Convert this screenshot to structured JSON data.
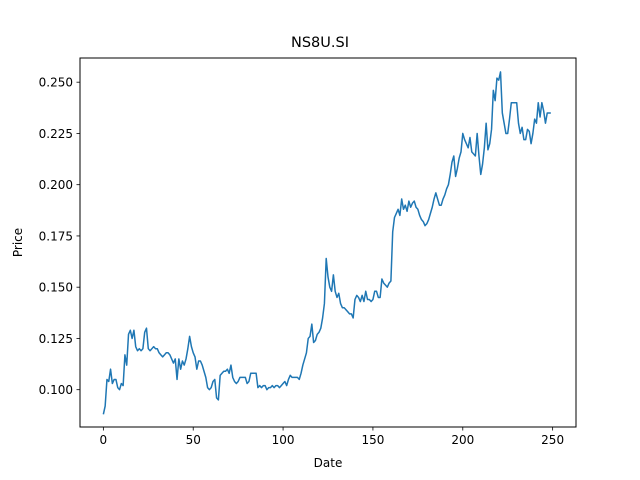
{
  "chart_data": {
    "type": "line",
    "title": "NS8U.SI",
    "xlabel": "Date",
    "ylabel": "Price",
    "xlim": [
      -13,
      263
    ],
    "ylim": [
      0.0818,
      0.2618
    ],
    "x_ticks": [
      0,
      50,
      100,
      150,
      200,
      250
    ],
    "y_ticks": [
      0.1,
      0.125,
      0.15,
      0.175,
      0.2,
      0.225,
      0.25
    ],
    "y_tick_labels": [
      "0.100",
      "0.125",
      "0.150",
      "0.175",
      "0.200",
      "0.225",
      "0.250"
    ],
    "grid": false,
    "line_color": "#1f77b4",
    "series": [
      {
        "values": [
          0.088,
          0.092,
          0.105,
          0.104,
          0.11,
          0.103,
          0.105,
          0.105,
          0.101,
          0.1,
          0.103,
          0.102,
          0.117,
          0.112,
          0.127,
          0.129,
          0.125,
          0.129,
          0.121,
          0.119,
          0.12,
          0.119,
          0.12,
          0.128,
          0.13,
          0.12,
          0.119,
          0.12,
          0.121,
          0.12,
          0.12,
          0.118,
          0.117,
          0.116,
          0.117,
          0.118,
          0.118,
          0.117,
          0.115,
          0.113,
          0.115,
          0.105,
          0.115,
          0.11,
          0.114,
          0.112,
          0.115,
          0.12,
          0.126,
          0.121,
          0.118,
          0.116,
          0.11,
          0.114,
          0.114,
          0.112,
          0.109,
          0.106,
          0.101,
          0.1,
          0.101,
          0.104,
          0.105,
          0.096,
          0.095,
          0.107,
          0.108,
          0.109,
          0.109,
          0.11,
          0.108,
          0.112,
          0.106,
          0.104,
          0.103,
          0.104,
          0.106,
          0.106,
          0.106,
          0.106,
          0.103,
          0.104,
          0.108,
          0.108,
          0.108,
          0.108,
          0.101,
          0.102,
          0.101,
          0.102,
          0.102,
          0.1,
          0.101,
          0.101,
          0.102,
          0.101,
          0.102,
          0.102,
          0.101,
          0.102,
          0.103,
          0.104,
          0.102,
          0.105,
          0.107,
          0.106,
          0.106,
          0.106,
          0.106,
          0.105,
          0.108,
          0.112,
          0.115,
          0.118,
          0.125,
          0.126,
          0.132,
          0.123,
          0.124,
          0.127,
          0.128,
          0.13,
          0.135,
          0.142,
          0.164,
          0.155,
          0.15,
          0.148,
          0.156,
          0.148,
          0.145,
          0.147,
          0.142,
          0.14,
          0.14,
          0.139,
          0.138,
          0.137,
          0.137,
          0.135,
          0.144,
          0.146,
          0.145,
          0.143,
          0.146,
          0.143,
          0.148,
          0.144,
          0.144,
          0.143,
          0.144,
          0.148,
          0.148,
          0.145,
          0.145,
          0.154,
          0.152,
          0.151,
          0.15,
          0.152,
          0.153,
          0.177,
          0.184,
          0.186,
          0.188,
          0.185,
          0.193,
          0.188,
          0.19,
          0.187,
          0.192,
          0.189,
          0.191,
          0.192,
          0.189,
          0.188,
          0.185,
          0.183,
          0.182,
          0.18,
          0.181,
          0.183,
          0.186,
          0.189,
          0.193,
          0.196,
          0.193,
          0.19,
          0.19,
          0.193,
          0.195,
          0.198,
          0.2,
          0.205,
          0.211,
          0.214,
          0.204,
          0.208,
          0.213,
          0.216,
          0.225,
          0.222,
          0.22,
          0.218,
          0.223,
          0.216,
          0.215,
          0.214,
          0.225,
          0.214,
          0.205,
          0.21,
          0.218,
          0.23,
          0.217,
          0.22,
          0.227,
          0.246,
          0.241,
          0.252,
          0.251,
          0.255,
          0.235,
          0.23,
          0.225,
          0.225,
          0.232,
          0.24,
          0.24,
          0.24,
          0.24,
          0.23,
          0.225,
          0.228,
          0.222,
          0.222,
          0.227,
          0.226,
          0.22,
          0.225,
          0.232,
          0.23,
          0.24,
          0.233,
          0.24,
          0.236,
          0.23,
          0.235,
          0.235,
          0.235
        ]
      }
    ]
  }
}
